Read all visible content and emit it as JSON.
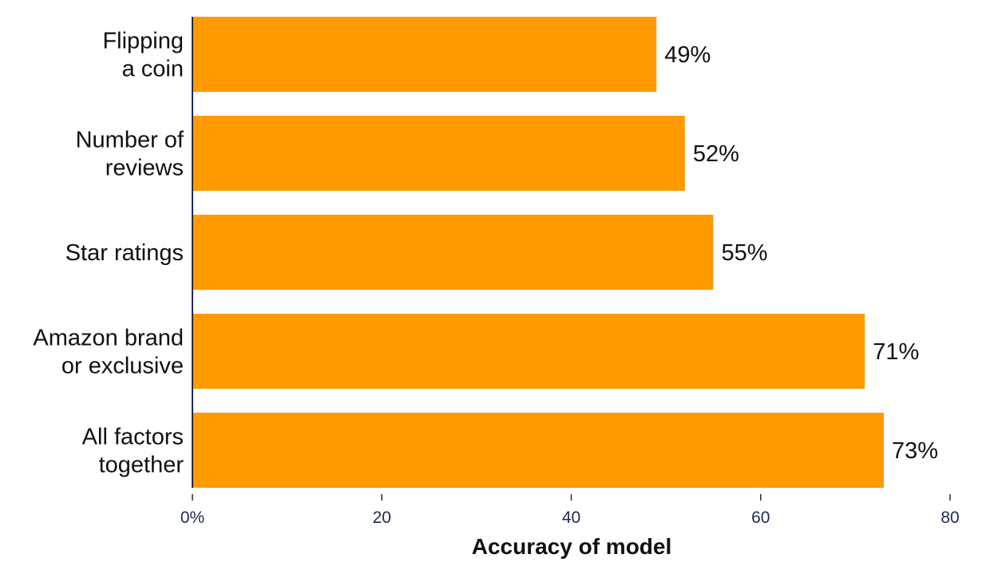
{
  "chart_data": {
    "type": "bar",
    "orientation": "horizontal",
    "categories": [
      [
        "Flipping",
        "a coin"
      ],
      [
        "Number of",
        "reviews"
      ],
      [
        "Star ratings"
      ],
      [
        "Amazon brand",
        "or exclusive"
      ],
      [
        "All factors",
        "together"
      ]
    ],
    "values": [
      49,
      52,
      55,
      71,
      73
    ],
    "value_labels": [
      "49%",
      "52%",
      "55%",
      "71%",
      "73%"
    ],
    "xlabel": "Accuracy of model",
    "ylabel": "",
    "xlim": [
      0,
      80
    ],
    "x_ticks": [
      0,
      20,
      40,
      60,
      80
    ],
    "x_tick_labels": [
      "0%",
      "20",
      "40",
      "60",
      "80"
    ],
    "bar_color": "#FF9B00",
    "axis_color": "#1f2a4d",
    "grid": false,
    "legend": "none"
  }
}
